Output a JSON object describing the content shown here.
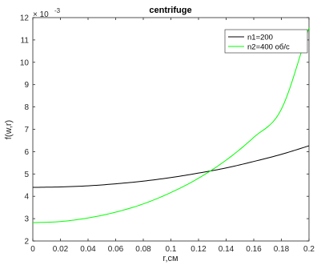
{
  "chart_data": {
    "type": "line",
    "title": "centrifuge",
    "xlabel": "r,см",
    "ylabel": "f(w,r)",
    "y_exponent_label": "× 10",
    "y_exponent_power": "-3",
    "xlim": [
      0,
      0.2
    ],
    "ylim": [
      2,
      12
    ],
    "grid": false,
    "legend_position": "top-right",
    "xticks": [
      0,
      0.02,
      0.04,
      0.06,
      0.08,
      0.1,
      0.12,
      0.14,
      0.16,
      0.18,
      0.2
    ],
    "xtick_labels": [
      "0",
      "0.02",
      "0.04",
      "0.06",
      "0.08",
      "0.1",
      "0.12",
      "0.14",
      "0.16",
      "0.18",
      "0.2"
    ],
    "yticks": [
      2,
      3,
      4,
      5,
      6,
      7,
      8,
      9,
      10,
      11,
      12
    ],
    "ytick_labels": [
      "2",
      "3",
      "4",
      "5",
      "6",
      "7",
      "8",
      "9",
      "10",
      "11",
      "12"
    ],
    "series": [
      {
        "name": "n1=200",
        "color": "#000000",
        "x": [
          0,
          0.02,
          0.04,
          0.06,
          0.08,
          0.1,
          0.12,
          0.14,
          0.16,
          0.18,
          0.2
        ],
        "values": [
          4.4,
          4.42,
          4.47,
          4.56,
          4.68,
          4.84,
          5.04,
          5.27,
          5.56,
          5.88,
          6.26
        ]
      },
      {
        "name": "n2=400 об/с",
        "color": "#00ff00",
        "x": [
          0,
          0.02,
          0.04,
          0.06,
          0.08,
          0.1,
          0.12,
          0.14,
          0.16,
          0.18,
          0.2
        ],
        "values": [
          2.82,
          2.87,
          3.03,
          3.29,
          3.66,
          4.17,
          4.81,
          5.62,
          6.64,
          7.9,
          11.55
        ]
      }
    ]
  }
}
